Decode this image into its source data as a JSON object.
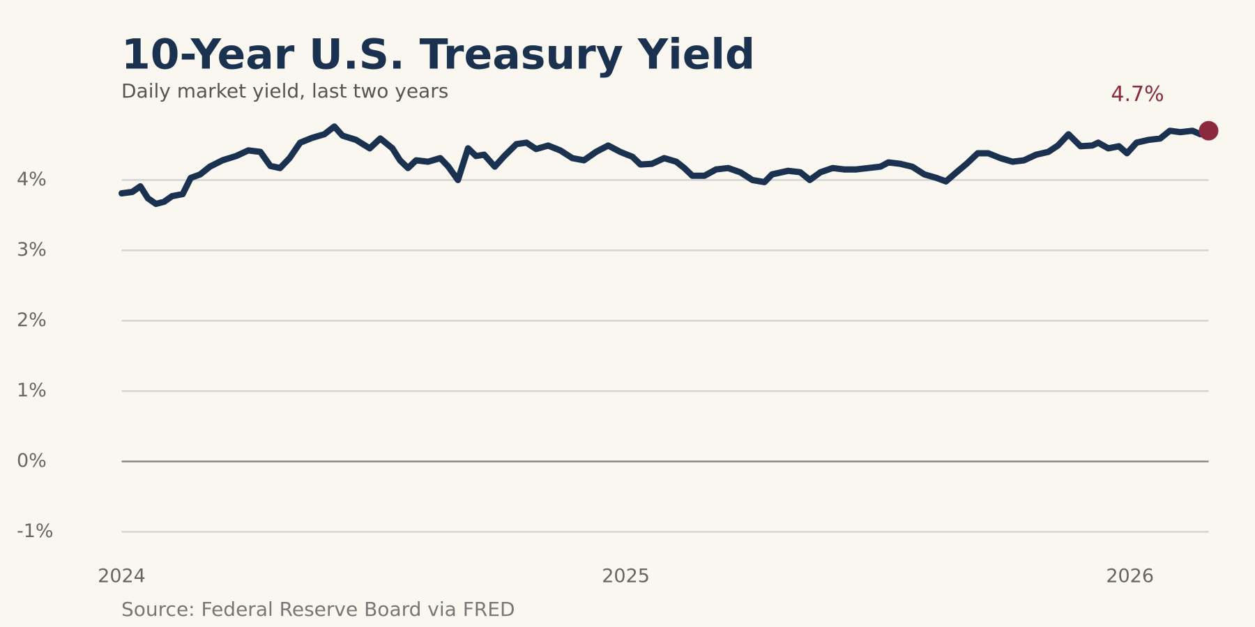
{
  "chart_data": {
    "type": "line",
    "title": "10-Year U.S. Treasury Yield",
    "subtitle": "Daily market yield, last two years",
    "source": "Source: Federal Reserve Board via FRED",
    "color": "#1b3150",
    "x": [
      2024.0,
      2024.021,
      2024.037,
      2024.052,
      2024.068,
      2024.084,
      2024.1,
      2024.121,
      2024.137,
      2024.156,
      2024.175,
      2024.2,
      2024.227,
      2024.251,
      2024.275,
      2024.295,
      2024.314,
      2024.333,
      2024.354,
      2024.378,
      2024.402,
      2024.422,
      2024.438,
      2024.465,
      2024.492,
      2024.513,
      2024.537,
      2024.552,
      2024.568,
      2024.584,
      2024.608,
      2024.632,
      2024.648,
      2024.667,
      2024.687,
      2024.703,
      2024.719,
      2024.74,
      2024.759,
      2024.783,
      2024.803,
      2024.822,
      2024.846,
      2024.87,
      2024.894,
      2024.917,
      2024.941,
      2024.965,
      2024.989,
      2025.013,
      2025.029,
      2025.052,
      2025.076,
      2025.1,
      2025.116,
      2025.132,
      2025.156,
      2025.179,
      2025.203,
      2025.227,
      2025.251,
      2025.275,
      2025.29,
      2025.322,
      2025.346,
      2025.365,
      2025.386,
      2025.41,
      2025.433,
      2025.457,
      2025.481,
      2025.505,
      2025.521,
      2025.544,
      2025.568,
      2025.592,
      2025.616,
      2025.635,
      2025.656,
      2025.676,
      2025.698,
      2025.719,
      2025.743,
      2025.767,
      2025.79,
      2025.814,
      2025.838,
      2025.857,
      2025.878,
      2025.902,
      2025.925,
      2025.937,
      2025.957,
      2025.978,
      2025.994,
      2026.013,
      2026.037,
      2026.06,
      2026.079,
      2026.1,
      2026.124,
      2026.14,
      2026.156
    ],
    "values": [
      3.81,
      3.83,
      3.91,
      3.74,
      3.66,
      3.69,
      3.77,
      3.8,
      4.03,
      4.08,
      4.19,
      4.28,
      4.34,
      4.42,
      4.4,
      4.2,
      4.17,
      4.31,
      4.53,
      4.6,
      4.65,
      4.76,
      4.63,
      4.57,
      4.45,
      4.59,
      4.45,
      4.28,
      4.17,
      4.28,
      4.26,
      4.31,
      4.19,
      4.0,
      4.45,
      4.34,
      4.36,
      4.19,
      4.34,
      4.51,
      4.53,
      4.44,
      4.49,
      4.42,
      4.31,
      4.28,
      4.4,
      4.49,
      4.4,
      4.33,
      4.22,
      4.23,
      4.31,
      4.26,
      4.17,
      4.06,
      4.06,
      4.15,
      4.17,
      4.11,
      4.0,
      3.97,
      4.08,
      4.13,
      4.11,
      4.0,
      4.11,
      4.17,
      4.15,
      4.15,
      4.17,
      4.19,
      4.25,
      4.23,
      4.19,
      4.08,
      4.03,
      3.98,
      4.11,
      4.23,
      4.38,
      4.38,
      4.31,
      4.26,
      4.28,
      4.36,
      4.4,
      4.49,
      4.65,
      4.48,
      4.49,
      4.53,
      4.45,
      4.48,
      4.38,
      4.53,
      4.57,
      4.59,
      4.7,
      4.68,
      4.7,
      4.65,
      4.7
    ],
    "annotations": [
      {
        "x": 2026.156,
        "y": 4.7,
        "label": "4.7%",
        "color": "#8b2a3c"
      }
    ],
    "xlim": [
      2024.0,
      2026.156
    ],
    "xticks": [
      2024,
      2025,
      2026
    ],
    "ylim": [
      -1.4,
      4.85
    ],
    "yticks": [
      {
        "value": -1,
        "label": "-1%"
      },
      {
        "value": 0,
        "label": "0%"
      },
      {
        "value": 1,
        "label": "1%"
      },
      {
        "value": 2,
        "label": "2%"
      },
      {
        "value": 3,
        "label": "3%"
      },
      {
        "value": 4,
        "label": "4%"
      }
    ],
    "grid": true
  }
}
